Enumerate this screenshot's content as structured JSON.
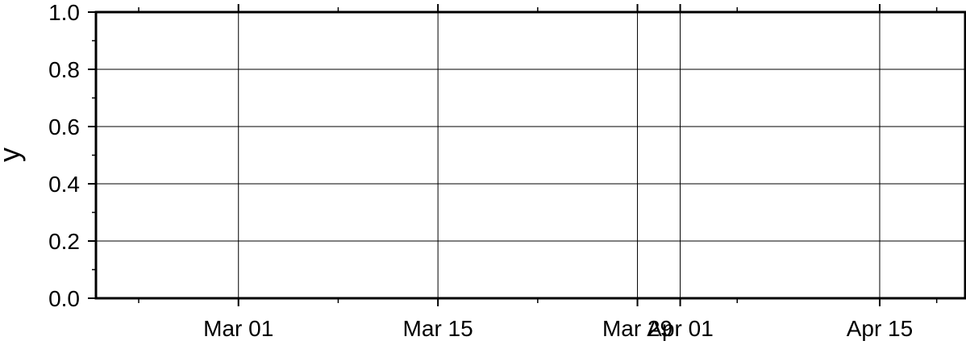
{
  "chart_data": {
    "type": "line",
    "title": "",
    "xlabel": "",
    "ylabel": "y",
    "xlim": [
      "2024-02-20",
      "2024-04-21"
    ],
    "ylim": [
      0,
      1
    ],
    "x_ticks": [
      {
        "date": "2024-03-01",
        "label": "Mar 01"
      },
      {
        "date": "2024-03-15",
        "label": "Mar 15"
      },
      {
        "date": "2024-03-29",
        "label": "Mar 29"
      },
      {
        "date": "2024-04-01",
        "label": "Apr 01"
      },
      {
        "date": "2024-04-15",
        "label": "Apr 15"
      }
    ],
    "x_minor_ticks": [
      "2024-02-23",
      "2024-03-08",
      "2024-03-22",
      "2024-04-05",
      "2024-04-19"
    ],
    "y_ticks": [
      "0.0",
      "0.2",
      "0.4",
      "0.6",
      "0.8",
      "1.0"
    ],
    "y_minor_step": 0.1,
    "grid": true,
    "series": []
  }
}
